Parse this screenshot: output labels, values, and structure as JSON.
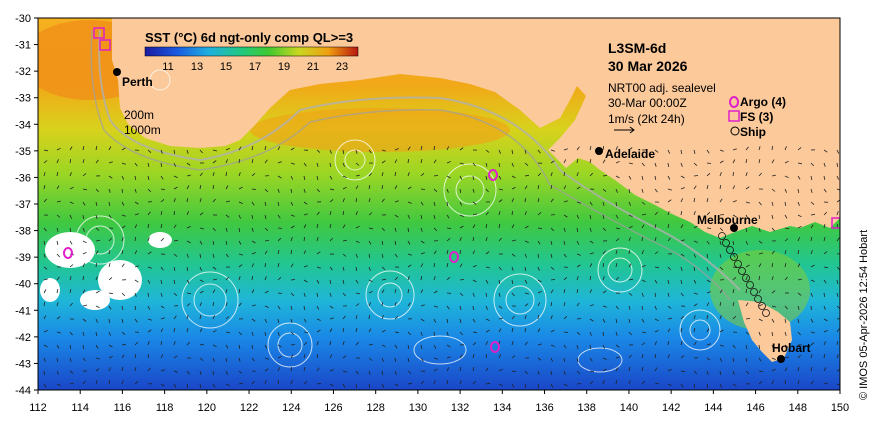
{
  "map": {
    "product": "L3SM-6d",
    "date": "30 Mar 2026",
    "colorbar_title": "SST (°C) 6d ngt-only comp QL>=3",
    "colorbar_ticks": [
      "11",
      "13",
      "15",
      "17",
      "19",
      "21",
      "23"
    ],
    "sealevel_label": "NRT00 adj. sealevel",
    "time_label": "30-Mar 00:00Z",
    "velocity_scale": "1m/s (2kt 24h)",
    "contours": [
      "200m",
      "1000m"
    ],
    "legend": {
      "argo": "Argo (4)",
      "fs": "FS (3)",
      "ship": "Ship"
    },
    "credit": "© IMOS 05-Apr-2026 12:54 Hobart",
    "x_ticks": [
      "112",
      "114",
      "116",
      "118",
      "120",
      "122",
      "124",
      "126",
      "128",
      "130",
      "132",
      "134",
      "136",
      "138",
      "140",
      "142",
      "144",
      "146",
      "148",
      "150"
    ],
    "y_ticks": [
      "-30",
      "-31",
      "-32",
      "-33",
      "-34",
      "-35",
      "-36",
      "-37",
      "-38",
      "-39",
      "-40",
      "-41",
      "-42",
      "-43",
      "-44"
    ],
    "cities": [
      "Perth",
      "Adelaide",
      "Melbourne",
      "Hobart"
    ],
    "colors": {
      "land": "#fbc99a",
      "warm": "#f08c10",
      "mid": "#2ec44a",
      "cold": "#1a58d8",
      "argo": "#e020c8",
      "fs": "#e020c8"
    }
  }
}
